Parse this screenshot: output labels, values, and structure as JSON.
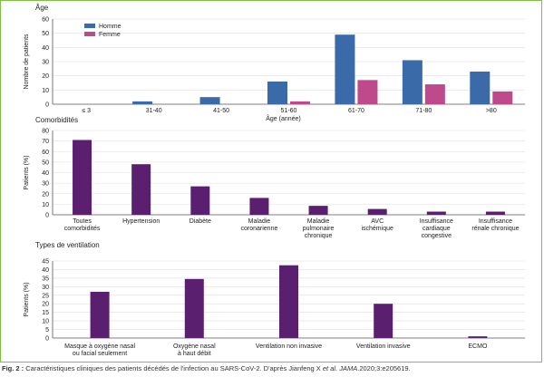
{
  "chart_data": [
    {
      "type": "bar",
      "title": "Âge",
      "xlabel": "Âge (année)",
      "ylabel": "Nombre de patients",
      "ylim": [
        0,
        60
      ],
      "yticks": [
        0,
        10,
        20,
        30,
        40,
        50,
        60
      ],
      "categories": [
        "≤ 3",
        "31-40",
        "41-50",
        "51-60",
        "61-70",
        "71-80",
        ">80"
      ],
      "legend_position": "top-left",
      "series": [
        {
          "name": "Homme",
          "color": "#3a6ba8",
          "values": [
            0,
            2,
            5,
            16,
            49,
            31,
            23
          ]
        },
        {
          "name": "Femme",
          "color": "#be4a8c",
          "values": [
            0,
            0,
            0,
            2,
            17,
            14,
            9
          ]
        }
      ]
    },
    {
      "type": "bar",
      "title": "Comorbidités",
      "xlabel": "",
      "ylabel": "Patients (%)",
      "ylim": [
        0,
        80
      ],
      "yticks": [
        0,
        10,
        20,
        30,
        40,
        50,
        60,
        70,
        80
      ],
      "categories": [
        [
          "Toutes",
          "comorbidités"
        ],
        [
          "Hypertension"
        ],
        [
          "Diabète"
        ],
        [
          "Maladie",
          "coronarienne"
        ],
        [
          "Maladie",
          "pulmonaire",
          "chronique"
        ],
        [
          "AVC",
          "ischémique"
        ],
        [
          "Insuffisance",
          "cardiaque",
          "congestive"
        ],
        [
          "Insuffisance",
          "rénale chronique"
        ]
      ],
      "series": [
        {
          "color": "#5b1f6f",
          "values": [
            71,
            48,
            27,
            16,
            8.5,
            5.5,
            3,
            3
          ]
        }
      ]
    },
    {
      "type": "bar",
      "title": "Types de ventilation",
      "xlabel": "",
      "ylabel": "Patients (%)",
      "ylim": [
        0,
        45
      ],
      "yticks": [
        0,
        5,
        10,
        15,
        20,
        25,
        30,
        35,
        40,
        45
      ],
      "categories": [
        [
          "Masque à oxygène nasal",
          "ou facial seulement"
        ],
        [
          "Oxygène nasal",
          "à haut débit"
        ],
        [
          "Ventilation non invasive"
        ],
        [
          "Ventilation invasive"
        ],
        [
          "ECMO"
        ]
      ],
      "series": [
        {
          "color": "#5b1f6f",
          "values": [
            27,
            34.5,
            42.5,
            20,
            1
          ]
        }
      ]
    }
  ],
  "caption": {
    "label": "Fig. 2 :",
    "text_before": " Caractéristiques cliniques des patients décédés de l'infection au SARS-CoV-2. D'après Jianfeng X ",
    "italic": "et al. JAMA",
    "text_after": ".2020;3:e205619."
  }
}
